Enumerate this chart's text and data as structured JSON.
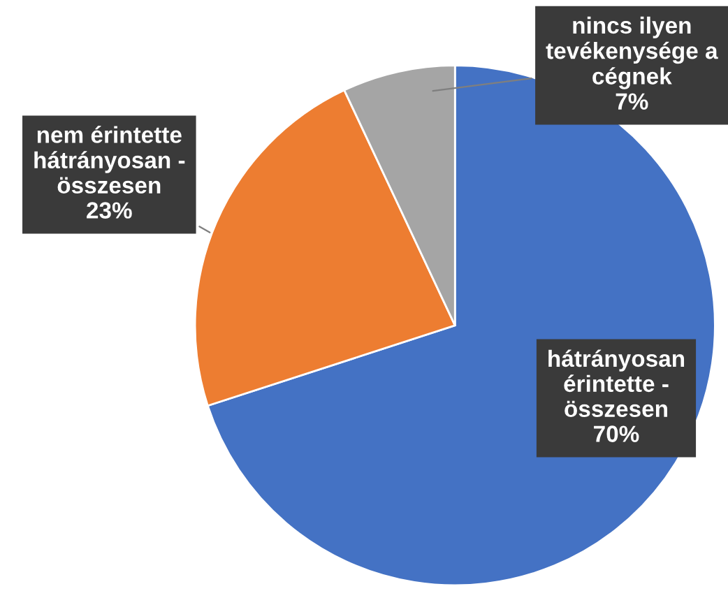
{
  "chart_data": {
    "type": "pie",
    "categories": [
      "hátrányosan\nérintette -\nösszesen",
      "nem érintette\nhátrányosan -\nösszesen",
      "nincs ilyen\ntevékenysége a\ncégnek"
    ],
    "values": [
      70,
      23,
      7
    ],
    "colors": [
      "#4472c4",
      "#ed7d31",
      "#a5a5a5"
    ],
    "value_labels": [
      "70%",
      "23%",
      "7%"
    ],
    "legend": false
  }
}
